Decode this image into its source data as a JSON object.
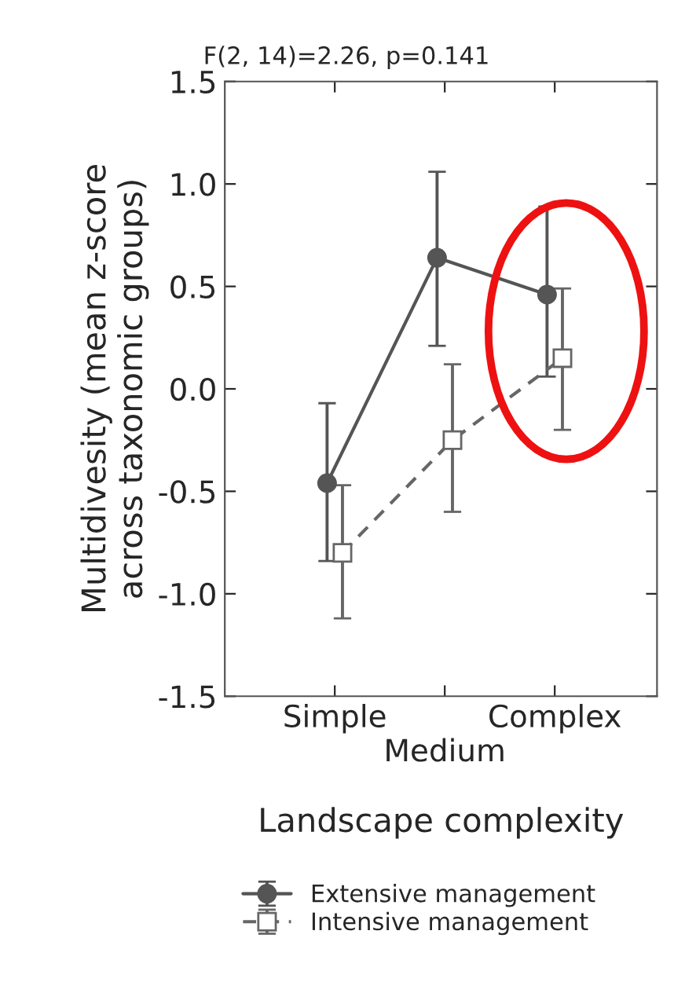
{
  "chart_data": {
    "type": "line",
    "title": "F(2, 14)=2.26, p=0.141",
    "xlabel": "Landscape complexity",
    "ylabel": "Multidivesity (mean z-score\nacross taxonomic groups)",
    "categories": [
      "Simple",
      "Medium",
      "Complex"
    ],
    "series": [
      {
        "name": "Extensive management",
        "color": "#555555",
        "values": [
          -0.46,
          0.64,
          0.46
        ],
        "errors": [
          [
            -0.84,
            -0.07
          ],
          [
            0.21,
            1.06
          ],
          [
            0.06,
            0.89
          ]
        ],
        "marker": "circle",
        "line_style": "solid"
      },
      {
        "name": "Intensive management",
        "color": "#666666",
        "values": [
          -0.8,
          -0.25,
          0.15
        ],
        "errors": [
          [
            -1.12,
            -0.47
          ],
          [
            -0.6,
            0.12
          ],
          [
            -0.2,
            0.49
          ]
        ],
        "marker": "square",
        "line_style": "dashed"
      }
    ],
    "ylim": [
      -1.5,
      1.5
    ],
    "yticks": [
      {
        "value": -1.5,
        "label": "-1.5"
      },
      {
        "value": -1.0,
        "label": "-1.0"
      },
      {
        "value": -0.5,
        "label": "-0.5"
      },
      {
        "value": 0,
        "label": "0.0"
      },
      {
        "value": 0.5,
        "label": "0.5"
      },
      {
        "value": 1.0,
        "label": "1.0"
      },
      {
        "value": 1.5,
        "label": "1.5"
      }
    ],
    "grid": false,
    "legend": "bottom"
  }
}
